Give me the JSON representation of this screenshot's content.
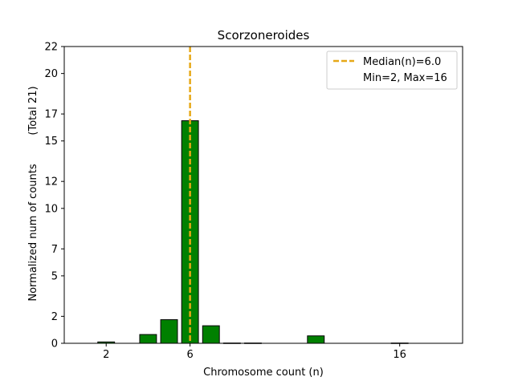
{
  "chart_data": {
    "type": "bar",
    "title": "Scorzoneroides",
    "xlabel": "Chromosome count (n)",
    "ylabel": "Normalized num of counts",
    "ylabel_secondary": "(Total 21)",
    "x": [
      2,
      3,
      4,
      5,
      6,
      7,
      8,
      9,
      10,
      11,
      12,
      13,
      14,
      15,
      16,
      17
    ],
    "values": [
      0.1,
      0,
      0.65,
      1.75,
      16.5,
      1.3,
      0.02,
      0.02,
      0,
      0,
      0.55,
      0,
      0,
      0,
      0.02,
      0
    ],
    "xlim": [
      0,
      19
    ],
    "ylim": [
      0,
      22
    ],
    "xticks": [
      2,
      6,
      16
    ],
    "yticks": [
      0,
      2,
      5,
      7,
      10,
      12,
      15,
      17,
      20,
      22
    ],
    "bar_color": "#008000",
    "bar_edge_color": "#000000",
    "median": {
      "value": 6.0,
      "color": "#e6a817"
    },
    "legend": {
      "position": "top-right",
      "median_label": "Median(n)=6.0",
      "range_label": "Min=2, Max=16"
    }
  }
}
